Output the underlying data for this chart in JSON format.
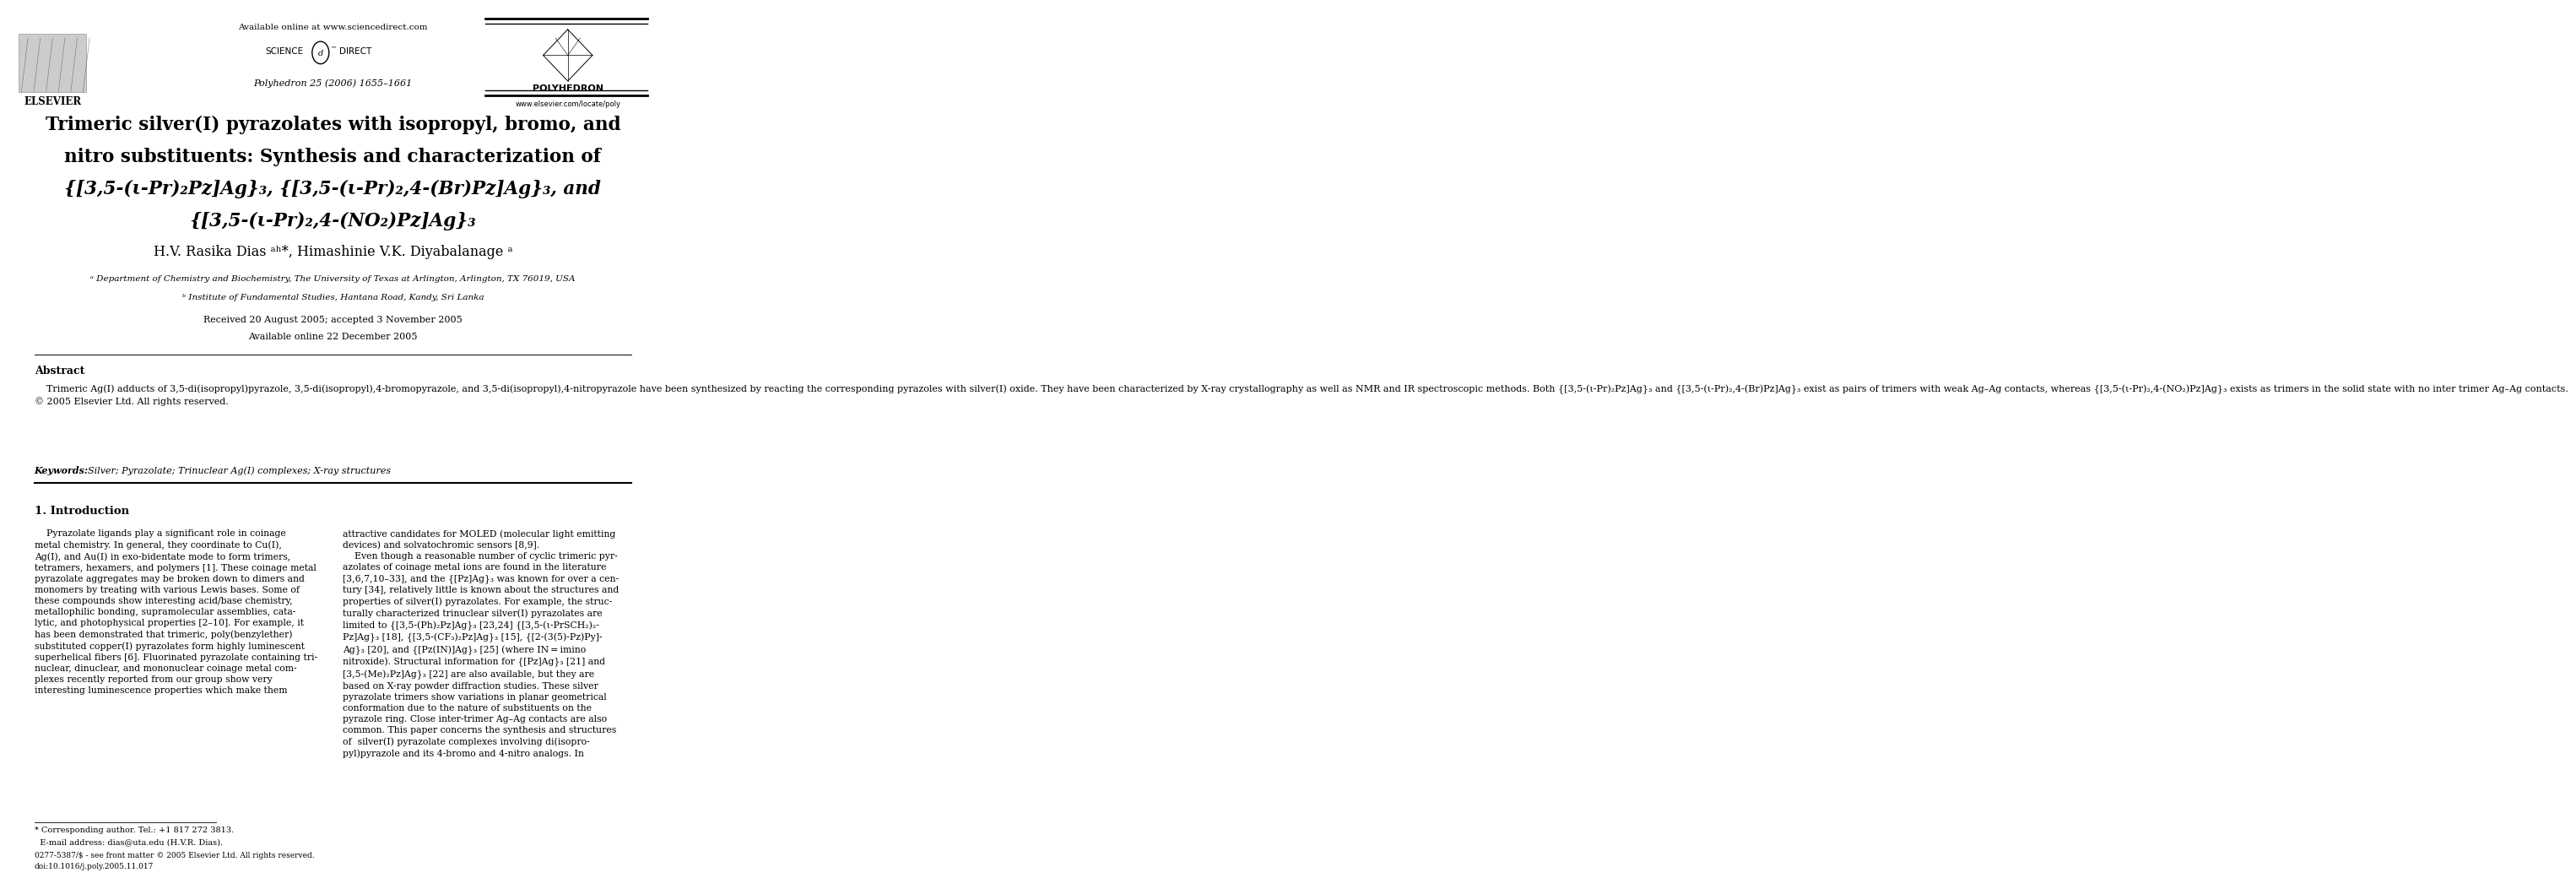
{
  "bg_color": "#ffffff",
  "page_width": 9.92,
  "page_height": 13.23,
  "header": {
    "available_online": "Available online at www.sciencedirect.com",
    "journal_info": "Polyhedron 25 (2006) 1655–1661",
    "journal_name": "POLYHEDRON",
    "journal_url": "www.elsevier.com/locate/poly",
    "publisher": "ELSEVIER"
  },
  "title_line1": "Trimeric silver(I) pyrazolates with isopropyl, bromo, and",
  "title_line2": "nitro substituents: Synthesis and characterization of",
  "title_line3": "{[3,5-(ι-Pr)₂Pz]Ag}₃, {[3,5-(ι-Pr)₂,4-(Br)Pz]Ag}₃, and",
  "title_line4": "{[3,5-(ι-Pr)₂,4-(NO₂)Pz]Ag}₃",
  "authors": "H.V. Rasika Dias ᵃʰ*, Himashinie V.K. Diyabalanage ᵃ",
  "affil_a": "ᵃ Department of Chemistry and Biochemistry, The University of Texas at Arlington, Arlington, TX 76019, USA",
  "affil_b": "ᵇ Institute of Fundamental Studies, Hantana Road, Kandy, Sri Lanka",
  "received": "Received 20 August 2005; accepted 3 November 2005",
  "available_online2": "Available online 22 December 2005",
  "abstract_title": "Abstract",
  "abstract_body": "    Trimeric Ag(I) adducts of 3,5-di(isopropyl)pyrazole, 3,5-di(isopropyl),4-bromopyrazole, and 3,5-di(isopropyl),4-nitropyrazole have been synthesized by reacting the corresponding pyrazoles with silver(I) oxide. They have been characterized by X-ray crystallography as well as NMR and IR spectroscopic methods. Both {[3,5-(ι-Pr)₂Pz]Ag}₃ and {[3,5-(ι-Pr)₂,4-(Br)Pz]Ag}₃ exist as pairs of trimers with weak Ag–Ag contacts, whereas {[3,5-(ι-Pr)₂,4-(NO₂)Pz]Ag}₃ exists as trimers in the solid state with no inter trimer Ag–Ag contacts.\n© 2005 Elsevier Ltd. All rights reserved.",
  "keywords_label": "Keywords:",
  "keywords_text": "  Silver; Pyrazolate; Trinuclear Ag(I) complexes; X-ray structures",
  "intro_heading": "1. Introduction",
  "intro_col1_lines": [
    "    Pyrazolate ligands play a significant role in coinage",
    "metal chemistry. In general, they coordinate to Cu(I),",
    "Ag(I), and Au(I) in exo-bidentate mode to form trimers,",
    "tetramers, hexamers, and polymers [1]. These coinage metal",
    "pyrazolate aggregates may be broken down to dimers and",
    "monomers by treating with various Lewis bases. Some of",
    "these compounds show interesting acid/base chemistry,",
    "metallophilic bonding, supramolecular assemblies, cata-",
    "lytic, and photophysical properties [2–10]. For example, it",
    "has been demonstrated that trimeric, poly(benzylether)",
    "substituted copper(I) pyrazolates form highly luminescent",
    "superhelical fibers [6]. Fluorinated pyrazolate containing tri-",
    "nuclear, dinuclear, and mononuclear coinage metal com-",
    "plexes recently reported from our group show very",
    "interesting luminescence properties which make them"
  ],
  "intro_col2_lines": [
    "attractive candidates for MOLED (molecular light emitting",
    "devices) and solvatochromic sensors [8,9].",
    "    Even though a reasonable number of cyclic trimeric pyr-",
    "azolates of coinage metal ions are found in the literature",
    "[3,6,7,10–33], and the {[Pz]Ag}₃ was known for over a cen-",
    "tury [34], relatively little is known about the structures and",
    "properties of silver(I) pyrazolates. For example, the struc-",
    "turally characterized trinuclear silver(I) pyrazolates are",
    "limited to {[3,5-(Ph)₂Pz]Ag}₃ [23,24] {[3,5-(ι-PrSCH₂)₂-",
    "Pz]Ag}₃ [18], {[3,5-(CF₃)₂Pz]Ag}₃ [15], {[2-(3(5)-Pz)Py]-",
    "Ag}₃ [20], and {[Pz(IN)]Ag}₃ [25] (where IN = imino",
    "nitroxide). Structural information for {[Pz]Ag}₃ [21] and",
    "[3,5-(Me)₂Pz]Ag}₃ [22] are also available, but they are",
    "based on X-ray powder diffraction studies. These silver",
    "pyrazolate trimers show variations in planar geometrical",
    "conformation due to the nature of substituents on the",
    "pyrazole ring. Close inter-trimer Ag–Ag contacts are also",
    "common. This paper concerns the synthesis and structures",
    "of  silver(I) pyrazolate complexes involving di(isopro-",
    "pyl)pyrazole and its 4-bromo and 4-nitro analogs. In"
  ],
  "footer_corr1": "* Corresponding author. Tel.: +1 817 272 3813.",
  "footer_corr2": "  E-mail address: dias@uta.edu (H.V.R. Dias).",
  "footer_copy1": "0277-5387/$ - see front matter © 2005 Elsevier Ltd. All rights reserved.",
  "footer_copy2": "doi:10.1016/j.poly.2005.11.017"
}
